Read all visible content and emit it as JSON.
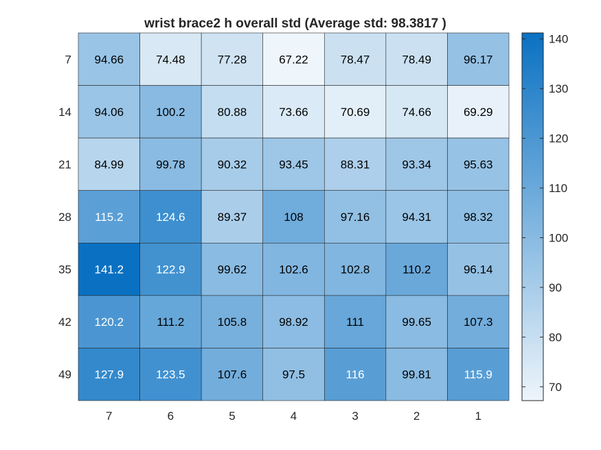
{
  "chart_data": {
    "type": "heatmap",
    "title": "wrist brace2 h overall std (Average std: 98.3817 )",
    "x_categories": [
      "7",
      "6",
      "5",
      "4",
      "3",
      "2",
      "1"
    ],
    "y_categories": [
      "7",
      "14",
      "21",
      "28",
      "35",
      "42",
      "49"
    ],
    "values": [
      [
        94.66,
        74.48,
        77.28,
        67.22,
        78.47,
        78.49,
        96.17
      ],
      [
        94.06,
        100.2,
        80.88,
        73.66,
        70.69,
        74.66,
        69.29
      ],
      [
        84.99,
        99.78,
        90.32,
        93.45,
        88.31,
        93.34,
        95.63
      ],
      [
        115.2,
        124.6,
        89.37,
        108,
        97.16,
        94.31,
        98.32
      ],
      [
        141.2,
        122.9,
        99.62,
        102.6,
        102.8,
        110.2,
        96.14
      ],
      [
        120.2,
        111.2,
        105.8,
        98.92,
        111,
        99.65,
        107.3
      ],
      [
        127.9,
        123.5,
        107.6,
        97.5,
        116,
        99.81,
        115.9
      ]
    ],
    "cell_labels": [
      [
        "94.66",
        "74.48",
        "77.28",
        "67.22",
        "78.47",
        "78.49",
        "96.17"
      ],
      [
        "94.06",
        "100.2",
        "80.88",
        "73.66",
        "70.69",
        "74.66",
        "69.29"
      ],
      [
        "84.99",
        "99.78",
        "90.32",
        "93.45",
        "88.31",
        "93.34",
        "95.63"
      ],
      [
        "115.2",
        "124.6",
        "89.37",
        "108",
        "97.16",
        "94.31",
        "98.32"
      ],
      [
        "141.2",
        "122.9",
        "99.62",
        "102.6",
        "102.8",
        "110.2",
        "96.14"
      ],
      [
        "120.2",
        "111.2",
        "105.8",
        "98.92",
        "111",
        "99.65",
        "107.3"
      ],
      [
        "127.9",
        "123.5",
        "107.6",
        "97.5",
        "116",
        "99.81",
        "115.9"
      ]
    ],
    "colorbar": {
      "range": [
        67.22,
        141.2
      ],
      "ticks": [
        70,
        80,
        90,
        100,
        110,
        120,
        130,
        140
      ],
      "tick_labels": [
        "70",
        "80",
        "90",
        "100",
        "110",
        "120",
        "130",
        "140"
      ],
      "color_low": "#eef5fb",
      "color_high": "#0a71c2"
    },
    "label_color_dark": "#000000",
    "label_color_light": "#ffffff",
    "grid_color": "#262626"
  }
}
